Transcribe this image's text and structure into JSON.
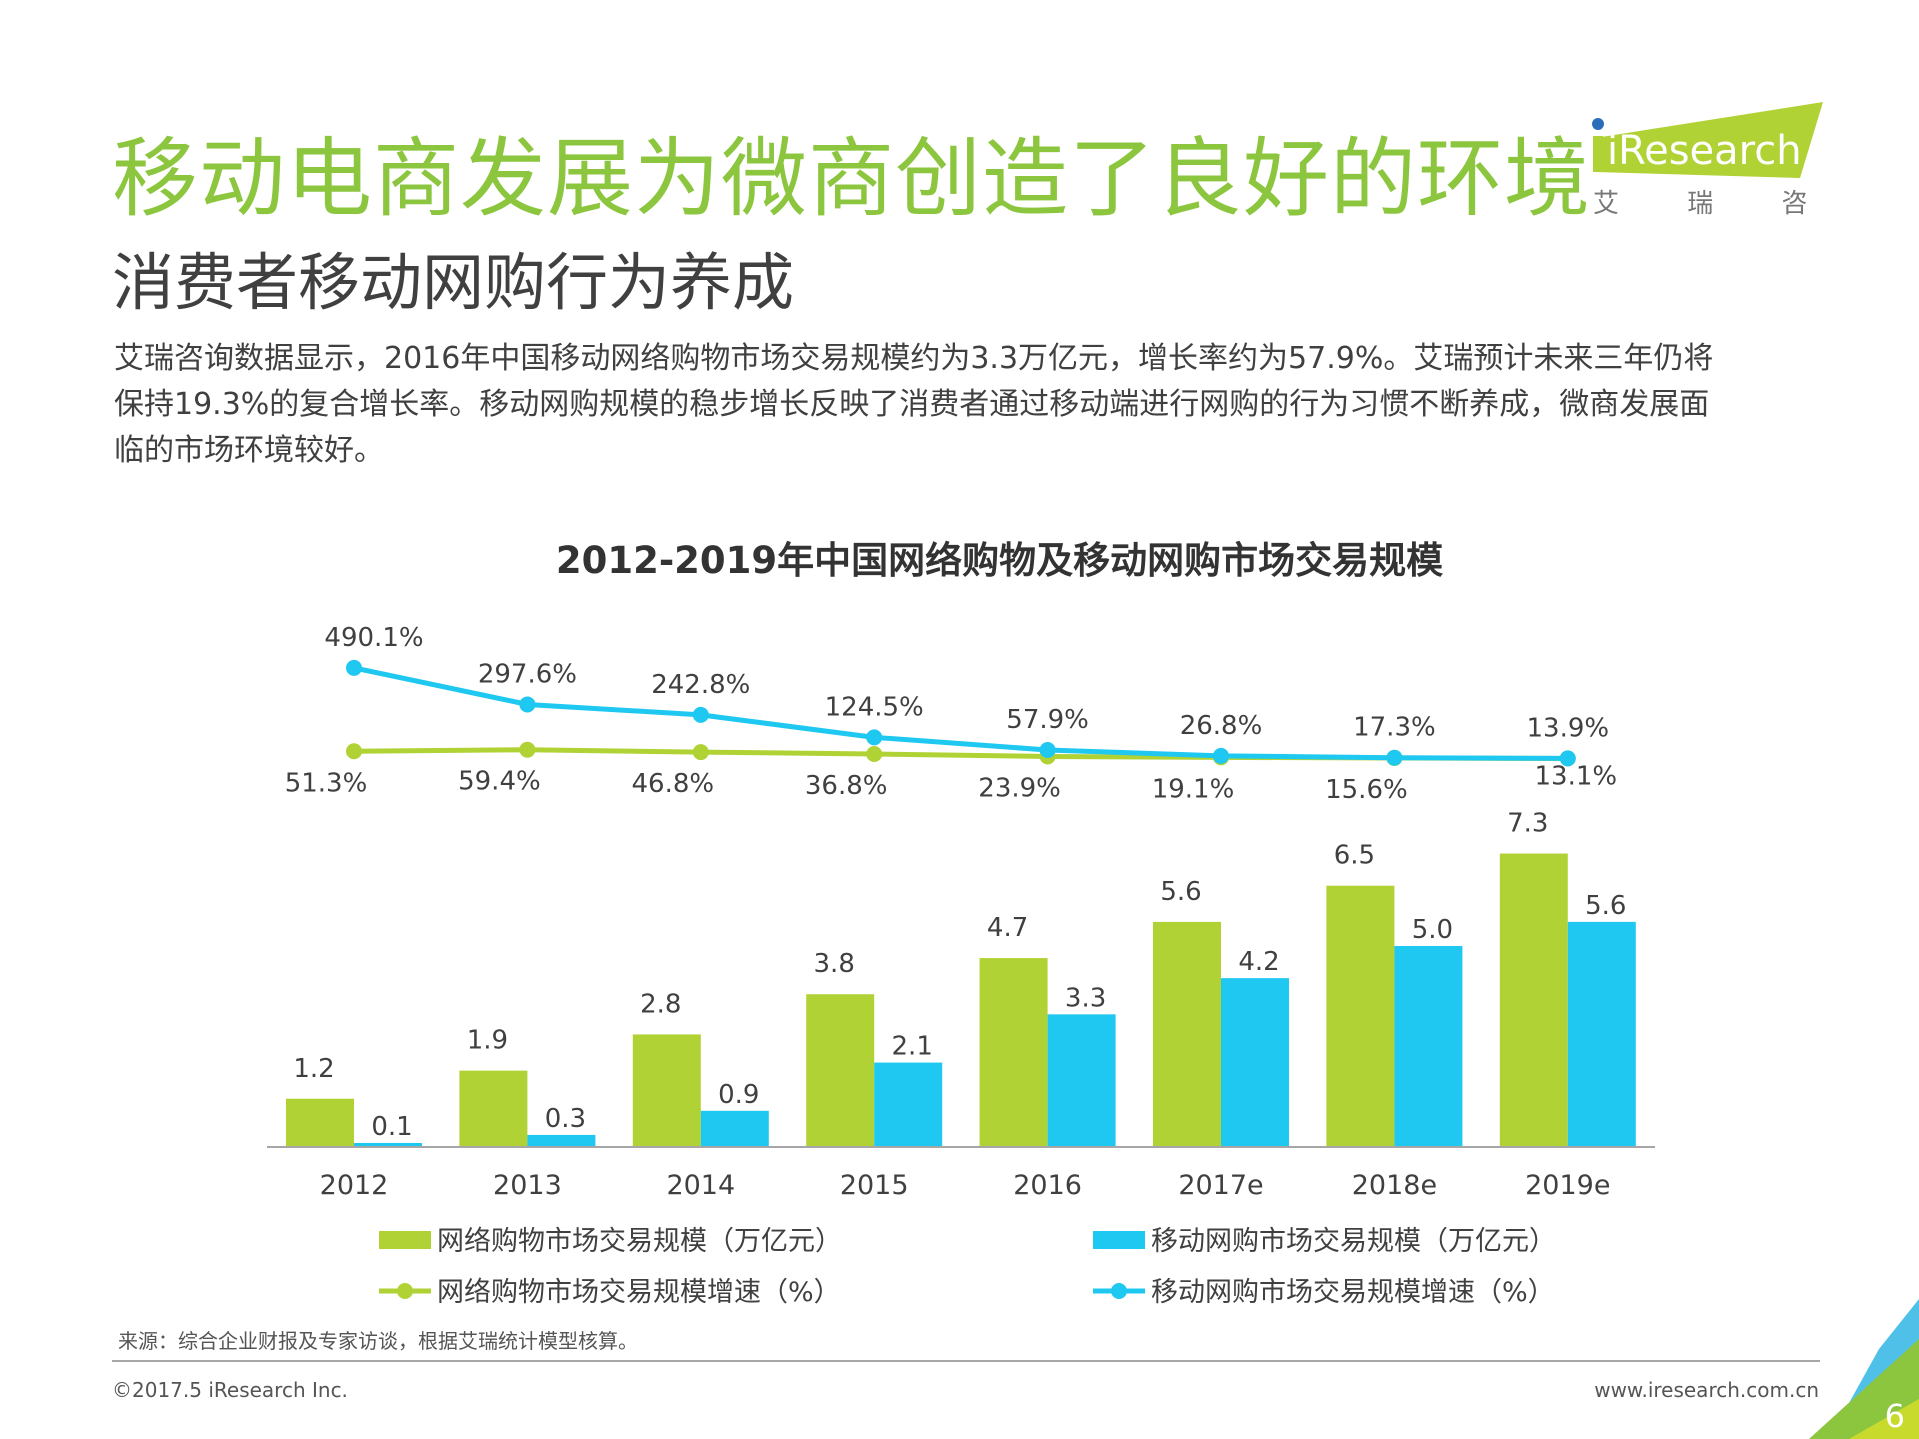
{
  "header": {
    "title": "移动电商发展为微商创造了良好的环境",
    "subtitle": "消费者移动网购行为养成",
    "paragraph_lines": [
      "艾瑞咨询数据显示，2016年中国移动网络购物市场交易规模约为3.3万亿元，增长率约为57.9%。艾瑞预计未来三年仍将",
      "保持19.3%的复合增长率。移动网购规模的稳步增长反映了消费者通过移动端进行网购的行为习惯不断养成，微商发展面",
      "临的市场环境较好。"
    ]
  },
  "logo": {
    "brand": "iResearch",
    "chinese": "艾 瑞 咨 询"
  },
  "colors": {
    "title_green": "#8cc63f",
    "green": "#b0d235",
    "blue": "#1fc8f0"
  },
  "chart_data": {
    "type": "bar+line",
    "title": "2012-2019年中国网络购物及移动网购市场交易规模",
    "categories": [
      "2012",
      "2013",
      "2014",
      "2015",
      "2016",
      "2017e",
      "2018e",
      "2019e"
    ],
    "series": [
      {
        "name": "网络购物市场交易规模（万亿元）",
        "type": "bar",
        "color": "#b0d235",
        "values": [
          1.2,
          1.9,
          2.8,
          3.8,
          4.7,
          5.6,
          6.5,
          7.3
        ],
        "labels": [
          "1.2",
          "1.9",
          "2.8",
          "3.8",
          "4.7",
          "5.6",
          "6.5",
          "7.3"
        ]
      },
      {
        "name": "移动网购市场交易规模（万亿元）",
        "type": "bar",
        "color": "#1fc8f0",
        "values": [
          0.1,
          0.3,
          0.9,
          2.1,
          3.3,
          4.2,
          5.0,
          5.6
        ],
        "labels": [
          "0.1",
          "0.3",
          "0.9",
          "2.1",
          "3.3",
          "4.2",
          "5.0",
          "5.6"
        ]
      },
      {
        "name": "网络购物市场交易规模增速（%）",
        "type": "line",
        "color": "#b0d235",
        "values": [
          51.3,
          59.4,
          46.8,
          36.8,
          23.9,
          19.1,
          15.6,
          13.1
        ],
        "labels": [
          "51.3%",
          "59.4%",
          "46.8%",
          "36.8%",
          "23.9%",
          "19.1%",
          "15.6%",
          "13.1%"
        ]
      },
      {
        "name": "移动网购市场交易规模增速（%）",
        "type": "line",
        "color": "#1fc8f0",
        "values": [
          490.1,
          297.6,
          242.8,
          124.5,
          57.9,
          26.8,
          17.3,
          13.9
        ],
        "labels": [
          "490.1%",
          "297.6%",
          "242.8%",
          "124.5%",
          "57.9%",
          "26.8%",
          "17.3%",
          "13.9%"
        ]
      }
    ],
    "legend_position": "bottom",
    "grid": false
  },
  "footer": {
    "source": "来源：综合企业财报及专家访谈，根据艾瑞统计模型核算。",
    "copyright": "©2017.5 iResearch Inc.",
    "website": "www.iresearch.com.cn",
    "page_number": "6"
  }
}
